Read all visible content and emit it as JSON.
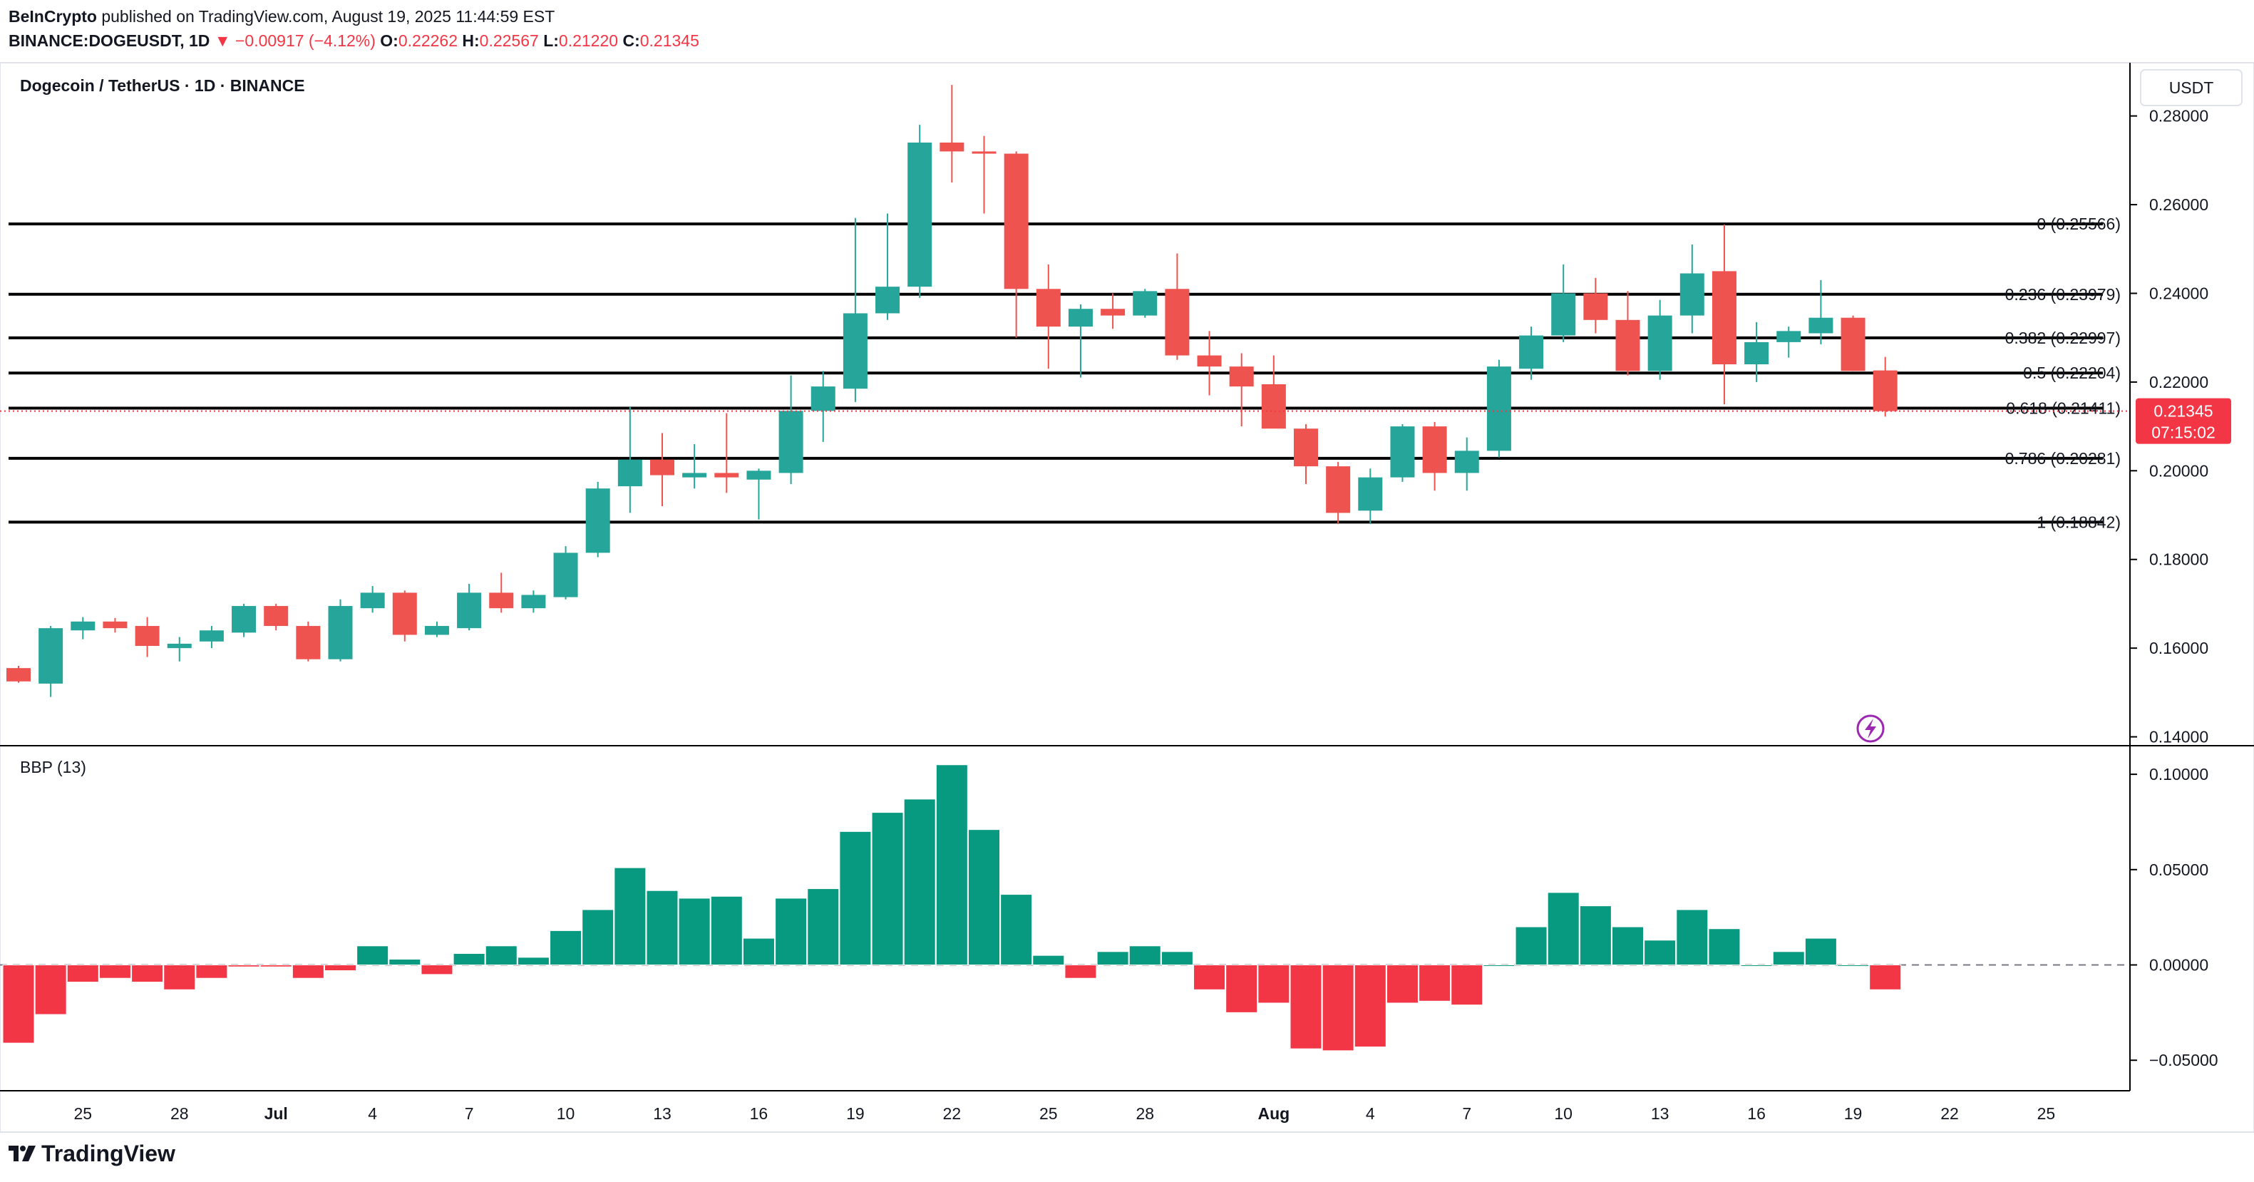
{
  "header": {
    "publisher": "BeInCrypto",
    "published_text": "published on TradingView.com, August 19, 2025 11:44:59 EST",
    "symbol_line": "BINANCE:DOGEUSDT, 1D",
    "change_text": "▼ −0.00917 (−4.12%)",
    "o_label": "O:",
    "o_value": "0.22262",
    "h_label": "H:",
    "h_value": "0.22567",
    "l_label": "L:",
    "l_value": "0.21220",
    "c_label": "C:",
    "c_value": "0.21345"
  },
  "pane_title": "Dogecoin / TetherUS · 1D · BINANCE",
  "currency_button": "USDT",
  "indicator_title": "BBP (13)",
  "price_tag": {
    "value": "0.21345",
    "countdown": "07:15:02"
  },
  "footer": {
    "brand": "TradingView"
  },
  "colors": {
    "up": "#26a69a",
    "down": "#ef5350",
    "bbp_up": "#089981",
    "bbp_down": "#f23645",
    "text": "#131722",
    "axis_line": "#000000"
  },
  "chart_data": [
    {
      "type": "candlestick",
      "title": "Dogecoin / TetherUS · 1D · BINANCE",
      "ylim": [
        0.138,
        0.292
      ],
      "y_ticks": [
        "0.28000",
        "0.26000",
        "0.24000",
        "0.22000",
        "0.20000",
        "0.18000",
        "0.16000",
        "0.14000"
      ],
      "x_ticks": [
        {
          "i": -1,
          "label": "22"
        },
        {
          "i": 2,
          "label": "25"
        },
        {
          "i": 5,
          "label": "28"
        },
        {
          "i": 8,
          "label": "Jul"
        },
        {
          "i": 11,
          "label": "4"
        },
        {
          "i": 14,
          "label": "7"
        },
        {
          "i": 17,
          "label": "10"
        },
        {
          "i": 20,
          "label": "13"
        },
        {
          "i": 23,
          "label": "16"
        },
        {
          "i": 26,
          "label": "19"
        },
        {
          "i": 29,
          "label": "22"
        },
        {
          "i": 32,
          "label": "25"
        },
        {
          "i": 35,
          "label": "28"
        },
        {
          "i": 39,
          "label": "Aug"
        },
        {
          "i": 42,
          "label": "4"
        },
        {
          "i": 45,
          "label": "7"
        },
        {
          "i": 48,
          "label": "10"
        },
        {
          "i": 51,
          "label": "13"
        },
        {
          "i": 54,
          "label": "16"
        },
        {
          "i": 57,
          "label": "19"
        },
        {
          "i": 60,
          "label": "22"
        },
        {
          "i": 63,
          "label": "25"
        }
      ],
      "fib_levels": [
        {
          "label": "0 (0.25566)",
          "value": 0.25566
        },
        {
          "label": "0.236 (0.23979)",
          "value": 0.23979
        },
        {
          "label": "0.382 (0.22997)",
          "value": 0.22997
        },
        {
          "label": "0.5 (0.22204)",
          "value": 0.22204
        },
        {
          "label": "0.618 (0.21411)",
          "value": 0.21411
        },
        {
          "label": "0.786 (0.20281)",
          "value": 0.20281
        },
        {
          "label": "1 (0.18842)",
          "value": 0.18842
        }
      ],
      "last_price": 0.21345,
      "candles": [
        {
          "o": 0.1555,
          "h": 0.156,
          "l": 0.1522,
          "c": 0.1525
        },
        {
          "o": 0.152,
          "h": 0.165,
          "l": 0.149,
          "c": 0.1645
        },
        {
          "o": 0.164,
          "h": 0.167,
          "l": 0.162,
          "c": 0.166
        },
        {
          "o": 0.166,
          "h": 0.1668,
          "l": 0.1635,
          "c": 0.1645
        },
        {
          "o": 0.165,
          "h": 0.167,
          "l": 0.158,
          "c": 0.1605
        },
        {
          "o": 0.16,
          "h": 0.1625,
          "l": 0.157,
          "c": 0.161
        },
        {
          "o": 0.1615,
          "h": 0.165,
          "l": 0.16,
          "c": 0.164
        },
        {
          "o": 0.1635,
          "h": 0.17,
          "l": 0.1625,
          "c": 0.1695
        },
        {
          "o": 0.1695,
          "h": 0.17,
          "l": 0.164,
          "c": 0.165
        },
        {
          "o": 0.165,
          "h": 0.166,
          "l": 0.157,
          "c": 0.1575
        },
        {
          "o": 0.1575,
          "h": 0.171,
          "l": 0.157,
          "c": 0.1695
        },
        {
          "o": 0.169,
          "h": 0.174,
          "l": 0.168,
          "c": 0.1725
        },
        {
          "o": 0.1725,
          "h": 0.173,
          "l": 0.1615,
          "c": 0.163
        },
        {
          "o": 0.163,
          "h": 0.166,
          "l": 0.1625,
          "c": 0.165
        },
        {
          "o": 0.1645,
          "h": 0.1745,
          "l": 0.164,
          "c": 0.1725
        },
        {
          "o": 0.1725,
          "h": 0.177,
          "l": 0.168,
          "c": 0.169
        },
        {
          "o": 0.169,
          "h": 0.173,
          "l": 0.168,
          "c": 0.172
        },
        {
          "o": 0.1715,
          "h": 0.183,
          "l": 0.171,
          "c": 0.1815
        },
        {
          "o": 0.1815,
          "h": 0.1975,
          "l": 0.1805,
          "c": 0.196
        },
        {
          "o": 0.1965,
          "h": 0.2145,
          "l": 0.1905,
          "c": 0.2025
        },
        {
          "o": 0.2025,
          "h": 0.2085,
          "l": 0.192,
          "c": 0.199
        },
        {
          "o": 0.1985,
          "h": 0.206,
          "l": 0.196,
          "c": 0.1995
        },
        {
          "o": 0.1995,
          "h": 0.213,
          "l": 0.195,
          "c": 0.1985
        },
        {
          "o": 0.198,
          "h": 0.2005,
          "l": 0.189,
          "c": 0.2
        },
        {
          "o": 0.1995,
          "h": 0.2215,
          "l": 0.197,
          "c": 0.2135
        },
        {
          "o": 0.2135,
          "h": 0.2225,
          "l": 0.2065,
          "c": 0.219
        },
        {
          "o": 0.2185,
          "h": 0.257,
          "l": 0.2155,
          "c": 0.2355
        },
        {
          "o": 0.2355,
          "h": 0.258,
          "l": 0.234,
          "c": 0.2415
        },
        {
          "o": 0.2415,
          "h": 0.278,
          "l": 0.239,
          "c": 0.274
        },
        {
          "o": 0.274,
          "h": 0.287,
          "l": 0.265,
          "c": 0.272
        },
        {
          "o": 0.272,
          "h": 0.2755,
          "l": 0.258,
          "c": 0.2715
        },
        {
          "o": 0.2715,
          "h": 0.272,
          "l": 0.23,
          "c": 0.241
        },
        {
          "o": 0.241,
          "h": 0.2465,
          "l": 0.223,
          "c": 0.2325
        },
        {
          "o": 0.2325,
          "h": 0.2375,
          "l": 0.221,
          "c": 0.2365
        },
        {
          "o": 0.2365,
          "h": 0.24,
          "l": 0.232,
          "c": 0.235
        },
        {
          "o": 0.235,
          "h": 0.241,
          "l": 0.2345,
          "c": 0.2405
        },
        {
          "o": 0.241,
          "h": 0.249,
          "l": 0.225,
          "c": 0.226
        },
        {
          "o": 0.226,
          "h": 0.2315,
          "l": 0.217,
          "c": 0.2235
        },
        {
          "o": 0.2235,
          "h": 0.2265,
          "l": 0.21,
          "c": 0.219
        },
        {
          "o": 0.2195,
          "h": 0.226,
          "l": 0.2105,
          "c": 0.2095
        },
        {
          "o": 0.2095,
          "h": 0.2105,
          "l": 0.197,
          "c": 0.201
        },
        {
          "o": 0.201,
          "h": 0.202,
          "l": 0.188,
          "c": 0.1905
        },
        {
          "o": 0.191,
          "h": 0.2005,
          "l": 0.188,
          "c": 0.1985
        },
        {
          "o": 0.1985,
          "h": 0.2105,
          "l": 0.1975,
          "c": 0.21
        },
        {
          "o": 0.21,
          "h": 0.211,
          "l": 0.1955,
          "c": 0.1995
        },
        {
          "o": 0.1995,
          "h": 0.2075,
          "l": 0.1955,
          "c": 0.2045
        },
        {
          "o": 0.2045,
          "h": 0.225,
          "l": 0.203,
          "c": 0.2235
        },
        {
          "o": 0.223,
          "h": 0.2325,
          "l": 0.2205,
          "c": 0.2305
        },
        {
          "o": 0.2305,
          "h": 0.2465,
          "l": 0.229,
          "c": 0.24
        },
        {
          "o": 0.24,
          "h": 0.2435,
          "l": 0.231,
          "c": 0.234
        },
        {
          "o": 0.234,
          "h": 0.2405,
          "l": 0.2215,
          "c": 0.2225
        },
        {
          "o": 0.2225,
          "h": 0.2385,
          "l": 0.2205,
          "c": 0.235
        },
        {
          "o": 0.235,
          "h": 0.251,
          "l": 0.231,
          "c": 0.2445
        },
        {
          "o": 0.245,
          "h": 0.2555,
          "l": 0.215,
          "c": 0.224
        },
        {
          "o": 0.224,
          "h": 0.2335,
          "l": 0.22,
          "c": 0.229
        },
        {
          "o": 0.229,
          "h": 0.2325,
          "l": 0.2255,
          "c": 0.2315
        },
        {
          "o": 0.231,
          "h": 0.243,
          "l": 0.2285,
          "c": 0.2345
        },
        {
          "o": 0.2345,
          "h": 0.235,
          "l": 0.2225,
          "c": 0.2225
        },
        {
          "o": 0.22262,
          "h": 0.22567,
          "l": 0.2122,
          "c": 0.21345
        }
      ]
    },
    {
      "type": "bar",
      "title": "BBP (13)",
      "ylim": [
        -0.066,
        0.115
      ],
      "y_ticks": [
        "0.10000",
        "0.05000",
        "0.00000",
        "−0.05000"
      ],
      "values": [
        -0.041,
        -0.026,
        -0.009,
        -0.007,
        -0.009,
        -0.013,
        -0.007,
        -0.001,
        -0.001,
        -0.007,
        -0.003,
        0.01,
        0.003,
        -0.005,
        0.006,
        0.01,
        0.004,
        0.018,
        0.029,
        0.051,
        0.039,
        0.035,
        0.036,
        0.014,
        0.035,
        0.04,
        0.07,
        0.08,
        0.087,
        0.105,
        0.071,
        0.037,
        0.005,
        -0.007,
        0.007,
        0.01,
        0.007,
        -0.013,
        -0.025,
        -0.02,
        -0.044,
        -0.045,
        -0.043,
        -0.02,
        -0.019,
        -0.021,
        0.0,
        0.02,
        0.038,
        0.031,
        0.02,
        0.013,
        0.029,
        0.019,
        0.0,
        0.007,
        0.014,
        0.0,
        -0.013
      ]
    }
  ]
}
